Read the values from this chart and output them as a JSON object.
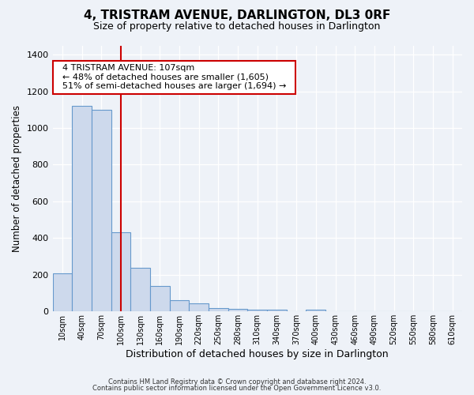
{
  "title": "4, TRISTRAM AVENUE, DARLINGTON, DL3 0RF",
  "subtitle": "Size of property relative to detached houses in Darlington",
  "xlabel": "Distribution of detached houses by size in Darlington",
  "ylabel": "Number of detached properties",
  "bar_labels": [
    "10sqm",
    "40sqm",
    "70sqm",
    "100sqm",
    "130sqm",
    "160sqm",
    "190sqm",
    "220sqm",
    "250sqm",
    "280sqm",
    "310sqm",
    "340sqm",
    "370sqm",
    "400sqm",
    "430sqm",
    "460sqm",
    "490sqm",
    "520sqm",
    "550sqm",
    "580sqm",
    "610sqm"
  ],
  "bar_values": [
    210,
    1120,
    1100,
    430,
    240,
    140,
    60,
    45,
    20,
    15,
    10,
    10,
    0,
    10,
    0,
    0,
    0,
    0,
    0,
    0,
    0
  ],
  "bar_color": "#cdd9ec",
  "bar_edge_color": "#6699cc",
  "vline_color": "#cc0000",
  "vline_position": 3,
  "annotation_title": "4 TRISTRAM AVENUE: 107sqm",
  "annotation_line1": "← 48% of detached houses are smaller (1,605)",
  "annotation_line2": "51% of semi-detached houses are larger (1,694) →",
  "annotation_box_color": "#ffffff",
  "annotation_box_edge": "#cc0000",
  "ylim": [
    0,
    1450
  ],
  "yticks": [
    0,
    200,
    400,
    600,
    800,
    1000,
    1200,
    1400
  ],
  "footnote1": "Contains HM Land Registry data © Crown copyright and database right 2024.",
  "footnote2": "Contains public sector information licensed under the Open Government Licence v3.0.",
  "background_color": "#eef2f8",
  "plot_bg_color": "#eef2f8",
  "grid_color": "#ffffff",
  "title_fontsize": 11,
  "subtitle_fontsize": 9
}
